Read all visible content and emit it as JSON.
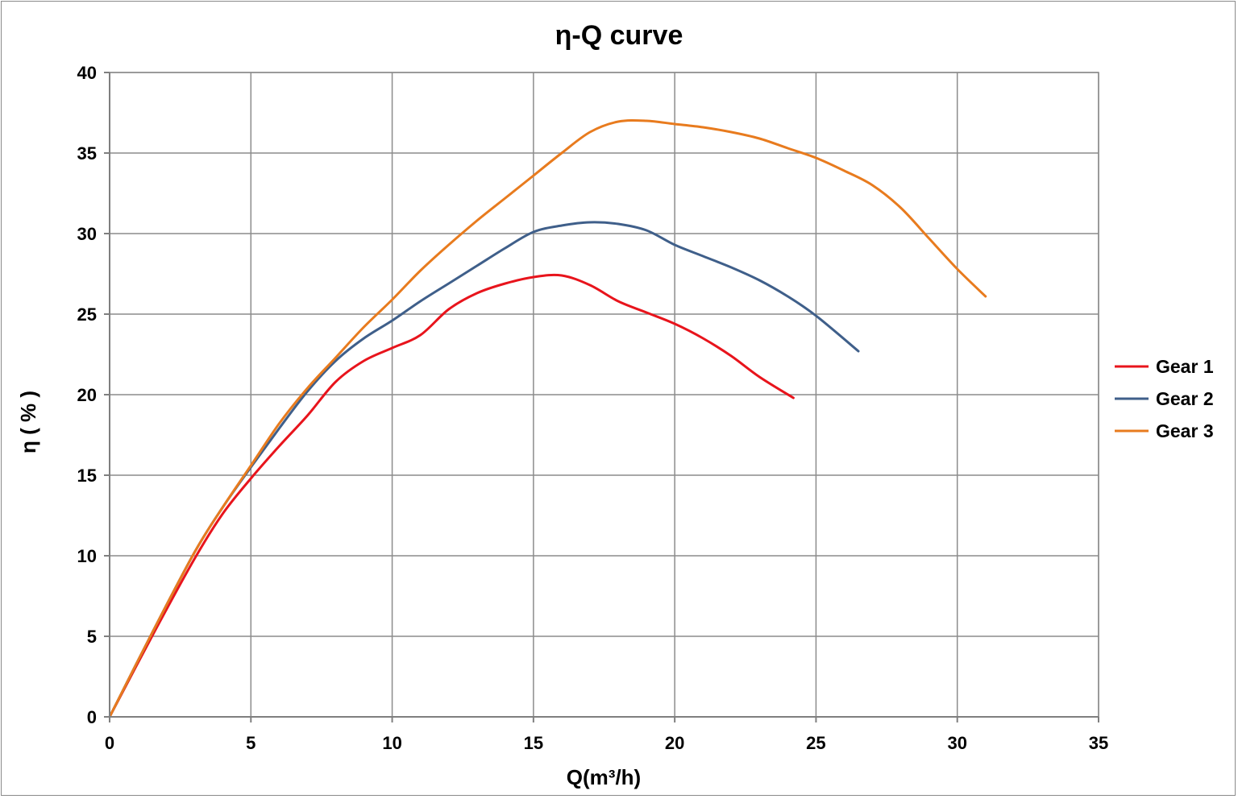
{
  "chart_data": {
    "type": "line",
    "title": "η-Q  curve",
    "xlabel": "Q(m³/h)",
    "ylabel": "η ( % )",
    "xlim": [
      0,
      35
    ],
    "ylim": [
      0,
      40
    ],
    "x_ticks": [
      0,
      5,
      10,
      15,
      20,
      25,
      30,
      35
    ],
    "y_ticks": [
      0,
      5,
      10,
      15,
      20,
      25,
      30,
      35,
      40
    ],
    "grid": true,
    "legend_position": "right",
    "series": [
      {
        "name": "Gear 1",
        "color": "#e8141c",
        "x": [
          0,
          1.5,
          3,
          4,
          5,
          6,
          7,
          8,
          9,
          10,
          11,
          12,
          13,
          14,
          15,
          16,
          17,
          18,
          19,
          20,
          21,
          22,
          23,
          24.2
        ],
        "y": [
          0,
          5,
          9.8,
          12.6,
          14.8,
          16.8,
          18.7,
          20.8,
          22.1,
          22.9,
          23.7,
          25.3,
          26.3,
          26.9,
          27.3,
          27.4,
          26.8,
          25.8,
          25.1,
          24.4,
          23.5,
          22.4,
          21.1,
          19.8
        ]
      },
      {
        "name": "Gear 2",
        "color": "#3f5f8a",
        "x": [
          0,
          1.5,
          3,
          4,
          5,
          6,
          7,
          8,
          9,
          10,
          11,
          12,
          13,
          14,
          15,
          16,
          17,
          18,
          19,
          20,
          21,
          22,
          23,
          24,
          25,
          26.5
        ],
        "y": [
          0,
          5.2,
          10.2,
          13,
          15.5,
          17.9,
          20.2,
          22.1,
          23.5,
          24.6,
          25.8,
          26.9,
          28.0,
          29.1,
          30.1,
          30.5,
          30.7,
          30.6,
          30.2,
          29.3,
          28.6,
          27.9,
          27.1,
          26.1,
          24.9,
          22.7
        ]
      },
      {
        "name": "Gear 3",
        "color": "#e87b1e",
        "x": [
          0,
          1.5,
          3,
          4,
          5,
          6,
          7,
          8,
          9,
          10,
          11,
          12,
          13,
          14,
          15,
          16,
          17,
          18,
          19,
          20,
          21,
          22,
          23,
          24,
          25,
          26,
          27,
          28,
          29,
          30,
          31
        ],
        "y": [
          0,
          5.2,
          10.2,
          13,
          15.6,
          18.2,
          20.4,
          22.3,
          24.2,
          25.9,
          27.7,
          29.3,
          30.8,
          32.2,
          33.6,
          35,
          36.3,
          36.95,
          37,
          36.8,
          36.6,
          36.3,
          35.9,
          35.3,
          34.7,
          33.9,
          33,
          31.6,
          29.7,
          27.8,
          26.1
        ]
      }
    ]
  }
}
